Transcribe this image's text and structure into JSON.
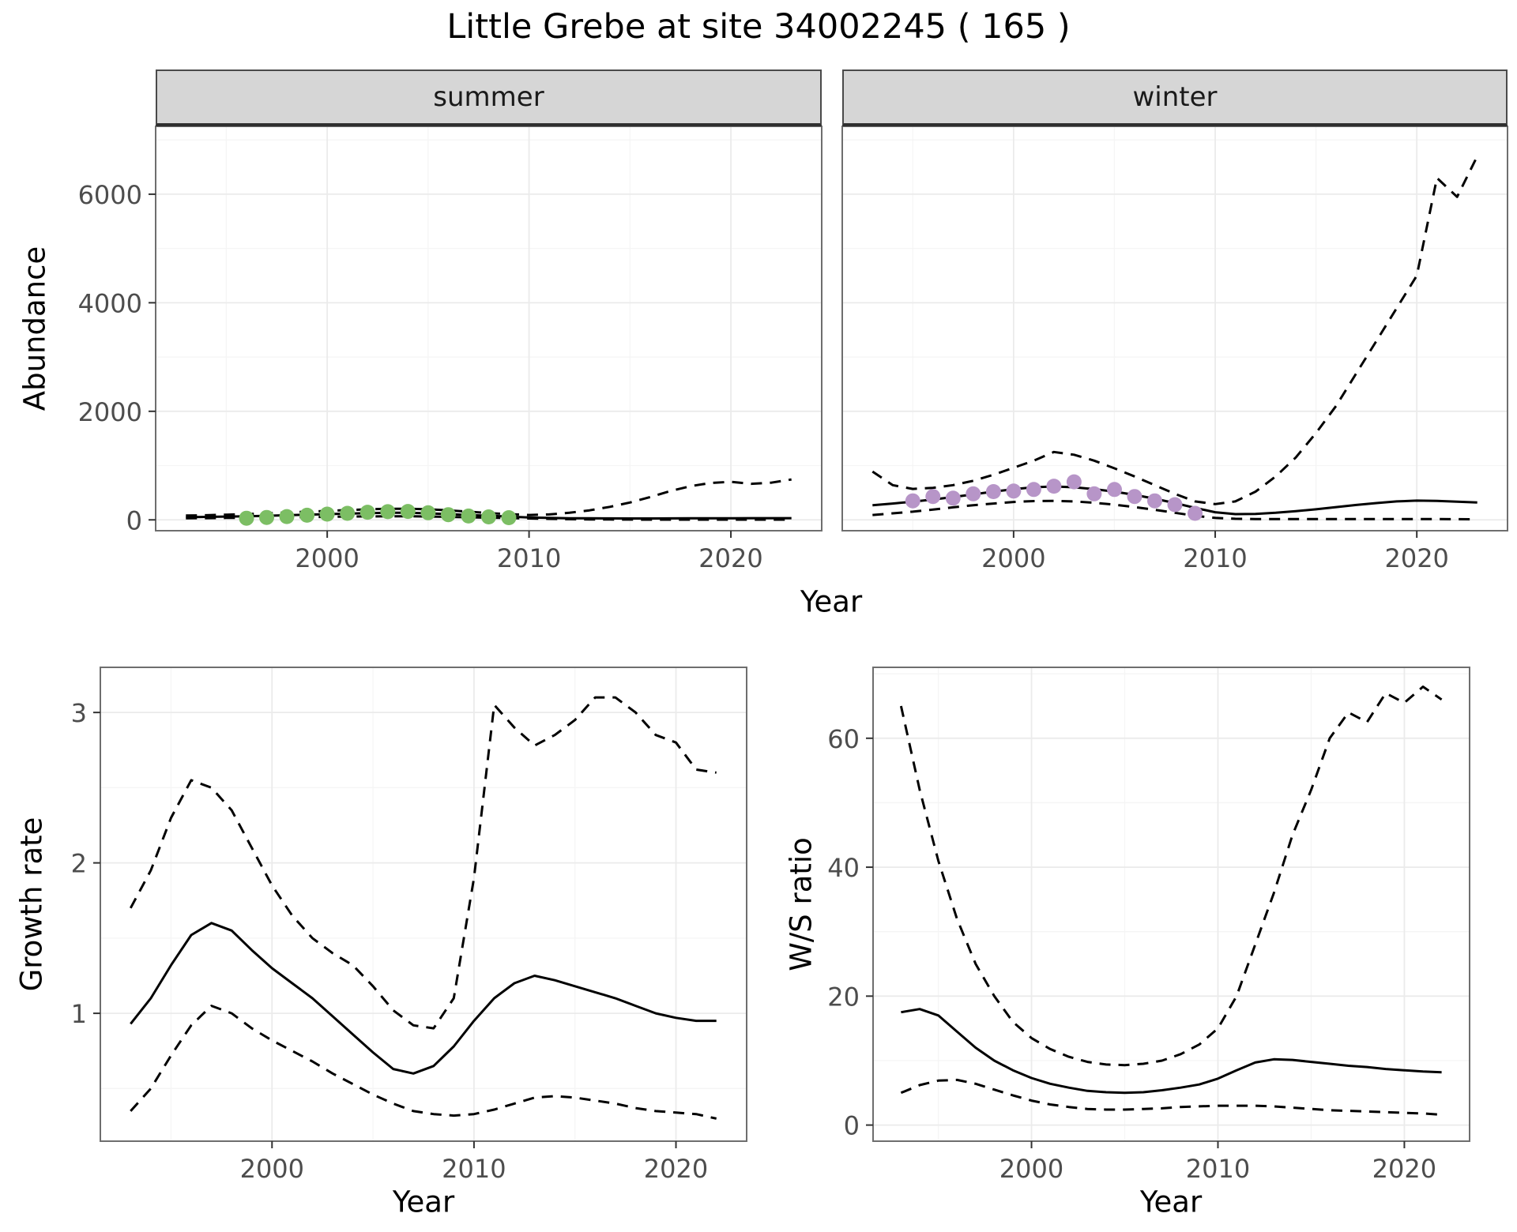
{
  "title": "Little Grebe at site 34002245 ( 165 )",
  "colors": {
    "line": "#000000",
    "grid_major": "#EBEBEB",
    "grid_minor": "#F5F5F5",
    "panel_border": "#6E6E6E",
    "tick_mark": "#333333",
    "tick_text": "#4D4D4D",
    "strip_bg": "#D6D6D6",
    "summer_points": "#7CBE64",
    "winter_points": "#B795C8"
  },
  "chart_data": [
    {
      "id": "abundance",
      "type": "line",
      "xlabel": "Year",
      "ylabel": "Abundance",
      "xlim": [
        1991.5,
        2024.5
      ],
      "ylim": [
        -200,
        7250
      ],
      "xticks": [
        2000,
        2010,
        2020
      ],
      "yticks": [
        0,
        2000,
        4000,
        6000
      ],
      "xticks_minor": [
        1995,
        2005,
        2015
      ],
      "yticks_minor": [
        1000,
        3000,
        5000,
        7000
      ],
      "x": [
        1993,
        1994,
        1995,
        1996,
        1997,
        1998,
        1999,
        2000,
        2001,
        2002,
        2003,
        2004,
        2005,
        2006,
        2007,
        2008,
        2009,
        2010,
        2011,
        2012,
        2013,
        2014,
        2015,
        2016,
        2017,
        2018,
        2019,
        2020,
        2021,
        2022,
        2023
      ],
      "facets": [
        {
          "label": "summer",
          "series": {
            "fit": [
              50,
              55,
              60,
              65,
              75,
              85,
              95,
              105,
              115,
              125,
              130,
              130,
              120,
              105,
              90,
              75,
              60,
              45,
              35,
              30,
              28,
              27,
              26,
              26,
              27,
              28,
              30,
              30,
              31,
              32,
              32
            ],
            "upper": [
              80,
              85,
              95,
              105,
              120,
              135,
              150,
              165,
              180,
              195,
              205,
              205,
              195,
              175,
              150,
              125,
              105,
              90,
              100,
              130,
              175,
              240,
              320,
              420,
              530,
              620,
              680,
              700,
              665,
              685,
              745
            ],
            "lower": [
              30,
              32,
              35,
              38,
              42,
              46,
              50,
              55,
              60,
              64,
              66,
              66,
              62,
              55,
              48,
              40,
              33,
              25,
              18,
              12,
              8,
              6,
              5,
              4,
              4,
              4,
              4,
              4,
              4,
              4,
              4
            ]
          },
          "points": {
            "color": "#7CBE64",
            "x": [
              1996,
              1997,
              1998,
              1999,
              2000,
              2001,
              2002,
              2003,
              2004,
              2005,
              2006,
              2007,
              2008,
              2009
            ],
            "y": [
              30,
              45,
              60,
              85,
              105,
              120,
              140,
              150,
              155,
              130,
              95,
              70,
              55,
              40
            ]
          }
        },
        {
          "label": "winter",
          "series": {
            "fit": [
              270,
              300,
              335,
              375,
              420,
              470,
              520,
              565,
              600,
              615,
              600,
              565,
              520,
              460,
              390,
              310,
              220,
              140,
              105,
              110,
              130,
              160,
              195,
              235,
              275,
              310,
              340,
              355,
              350,
              335,
              320
            ],
            "upper": [
              890,
              640,
              570,
              590,
              640,
              720,
              830,
              960,
              1090,
              1250,
              1200,
              1090,
              950,
              800,
              640,
              480,
              340,
              290,
              340,
              520,
              800,
              1150,
              1600,
              2100,
              2700,
              3300,
              3900,
              4500,
              6300,
              5950,
              6700
            ],
            "lower": [
              90,
              120,
              150,
              190,
              230,
              270,
              300,
              330,
              345,
              350,
              340,
              315,
              280,
              235,
              185,
              130,
              75,
              35,
              20,
              15,
              15,
              15,
              15,
              15,
              15,
              15,
              15,
              15,
              15,
              12,
              10
            ]
          },
          "points": {
            "color": "#B795C8",
            "x": [
              1995,
              1996,
              1997,
              1998,
              1999,
              2000,
              2001,
              2002,
              2003,
              2004,
              2005,
              2006,
              2007,
              2008,
              2009
            ],
            "y": [
              350,
              430,
              400,
              480,
              520,
              530,
              560,
              620,
              700,
              480,
              560,
              430,
              350,
              280,
              120
            ]
          }
        }
      ]
    },
    {
      "id": "growth_rate",
      "type": "line",
      "xlabel": "Year",
      "ylabel": "Growth rate",
      "xlim": [
        1991.5,
        2023.5
      ],
      "ylim": [
        0.15,
        3.3
      ],
      "xticks": [
        2000,
        2010,
        2020
      ],
      "yticks": [
        1,
        2,
        3
      ],
      "xticks_minor": [
        1995,
        2005,
        2015
      ],
      "yticks_minor": [
        0.5,
        1.5,
        2.5
      ],
      "x": [
        1993,
        1994,
        1995,
        1996,
        1997,
        1998,
        1999,
        2000,
        2001,
        2002,
        2003,
        2004,
        2005,
        2006,
        2007,
        2008,
        2009,
        2010,
        2011,
        2012,
        2013,
        2014,
        2015,
        2016,
        2017,
        2018,
        2019,
        2020,
        2021,
        2022
      ],
      "series": {
        "fit": [
          0.93,
          1.1,
          1.32,
          1.52,
          1.6,
          1.55,
          1.42,
          1.3,
          1.2,
          1.1,
          0.98,
          0.86,
          0.74,
          0.63,
          0.6,
          0.65,
          0.78,
          0.95,
          1.1,
          1.2,
          1.25,
          1.22,
          1.18,
          1.14,
          1.1,
          1.05,
          1.0,
          0.97,
          0.95,
          0.95
        ],
        "upper": [
          1.7,
          1.95,
          2.3,
          2.55,
          2.5,
          2.35,
          2.1,
          1.85,
          1.65,
          1.5,
          1.4,
          1.32,
          1.18,
          1.02,
          0.92,
          0.9,
          1.1,
          1.9,
          3.05,
          2.9,
          2.78,
          2.85,
          2.95,
          3.1,
          3.1,
          3.0,
          2.85,
          2.8,
          2.62,
          2.6
        ],
        "lower": [
          0.35,
          0.5,
          0.72,
          0.92,
          1.05,
          1.0,
          0.9,
          0.82,
          0.75,
          0.68,
          0.6,
          0.53,
          0.46,
          0.4,
          0.35,
          0.33,
          0.32,
          0.33,
          0.36,
          0.4,
          0.44,
          0.45,
          0.44,
          0.42,
          0.4,
          0.37,
          0.35,
          0.34,
          0.33,
          0.3
        ]
      }
    },
    {
      "id": "ws_ratio",
      "type": "line",
      "xlabel": "Year",
      "ylabel": "W/S ratio",
      "xlim": [
        1991.5,
        2023.5
      ],
      "ylim": [
        -2.5,
        71
      ],
      "xticks": [
        2000,
        2010,
        2020
      ],
      "yticks": [
        0,
        20,
        40,
        60
      ],
      "xticks_minor": [
        1995,
        2005,
        2015
      ],
      "yticks_minor": [
        10,
        30,
        50,
        70
      ],
      "x": [
        1993,
        1994,
        1995,
        1996,
        1997,
        1998,
        1999,
        2000,
        2001,
        2002,
        2003,
        2004,
        2005,
        2006,
        2007,
        2008,
        2009,
        2010,
        2011,
        2012,
        2013,
        2014,
        2015,
        2016,
        2017,
        2018,
        2019,
        2020,
        2021,
        2022
      ],
      "series": {
        "fit": [
          17.5,
          18,
          17,
          14.5,
          12,
          10,
          8.5,
          7.3,
          6.4,
          5.8,
          5.3,
          5.1,
          5.0,
          5.1,
          5.4,
          5.8,
          6.3,
          7.2,
          8.5,
          9.7,
          10.2,
          10.1,
          9.8,
          9.5,
          9.2,
          9.0,
          8.7,
          8.5,
          8.3,
          8.2
        ],
        "upper": [
          65,
          52,
          41,
          32,
          25,
          20,
          16,
          13.5,
          11.8,
          10.6,
          9.8,
          9.4,
          9.3,
          9.5,
          10,
          11,
          12.5,
          15,
          20,
          28,
          36,
          45,
          52,
          60,
          64,
          62.5,
          67,
          65.5,
          68,
          66
        ],
        "lower": [
          5,
          6.2,
          6.9,
          7,
          6.4,
          5.5,
          4.6,
          3.8,
          3.2,
          2.8,
          2.5,
          2.4,
          2.4,
          2.5,
          2.6,
          2.8,
          2.9,
          3.0,
          3.0,
          3.0,
          2.9,
          2.7,
          2.5,
          2.3,
          2.2,
          2.1,
          2.0,
          1.9,
          1.8,
          1.6
        ]
      }
    }
  ]
}
